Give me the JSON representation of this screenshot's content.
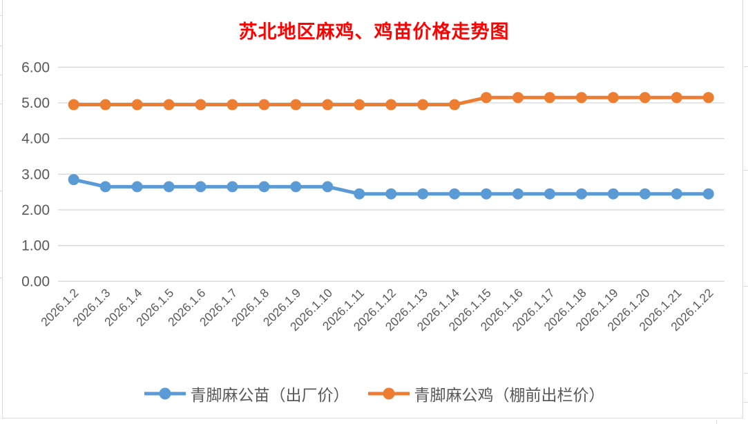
{
  "title": "苏北地区麻鸡、鸡苗价格走势图",
  "chart_data": {
    "type": "line",
    "title": "苏北地区麻鸡、鸡苗价格走势图",
    "categories": [
      "2026.1.2",
      "2026.1.3",
      "2026.1.4",
      "2026.1.5",
      "2026.1.6",
      "2026.1.7",
      "2026.1.8",
      "2026.1.9",
      "2026.1.10",
      "2026.1.11",
      "2026.1.12",
      "2026.1.13",
      "2026.1.14",
      "2026.1.15",
      "2026.1.16",
      "2026.1.17",
      "2026.1.18",
      "2026.1.19",
      "2026.1.20",
      "2026.1.21",
      "2026.1.22"
    ],
    "series": [
      {
        "name": "青脚麻公苗（出厂价）",
        "color": "#5B9BD5",
        "values": [
          2.85,
          2.65,
          2.65,
          2.65,
          2.65,
          2.65,
          2.65,
          2.65,
          2.65,
          2.45,
          2.45,
          2.45,
          2.45,
          2.45,
          2.45,
          2.45,
          2.45,
          2.45,
          2.45,
          2.45,
          2.45
        ]
      },
      {
        "name": "青脚麻公鸡（棚前出栏价）",
        "color": "#ED7D31",
        "values": [
          4.95,
          4.95,
          4.95,
          4.95,
          4.95,
          4.95,
          4.95,
          4.95,
          4.95,
          4.95,
          4.95,
          4.95,
          4.95,
          5.15,
          5.15,
          5.15,
          5.15,
          5.15,
          5.15,
          5.15,
          5.15
        ]
      }
    ],
    "xlabel": "",
    "ylabel": "",
    "ylim": [
      0,
      6
    ],
    "ytick_labels": [
      "0.00",
      "1.00",
      "2.00",
      "3.00",
      "4.00",
      "5.00",
      "6.00"
    ],
    "grid": true,
    "legend_position": "bottom",
    "x_label_rotation_deg": -45
  },
  "colors": {
    "title": "#FF0000",
    "axis_text": "#595959",
    "gridline": "#D9D9D9",
    "chart_border": "#D9D9D9"
  }
}
